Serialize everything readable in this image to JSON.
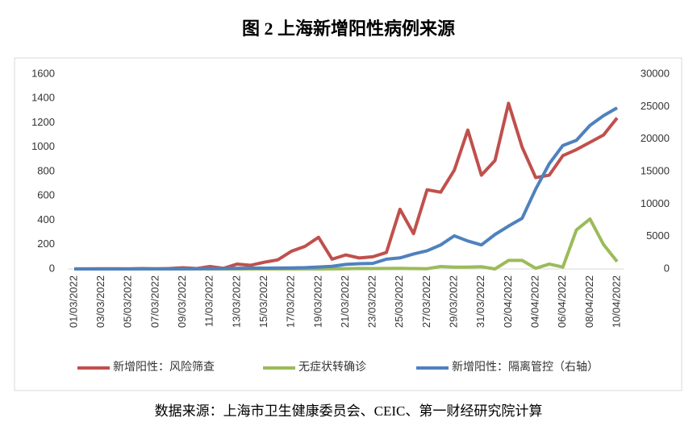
{
  "chart_data": {
    "type": "line",
    "title": "图 2  上海新增阳性病例来源",
    "source": "数据来源：上海市卫生健康委员会、CEIC、第一财经研究院计算",
    "categories": [
      "01/03/2022",
      null,
      "03/03/2022",
      null,
      "05/03/2022",
      null,
      "07/03/2022",
      null,
      "09/03/2022",
      null,
      "11/03/2022",
      null,
      "13/03/2022",
      null,
      "15/03/2022",
      null,
      "17/03/2022",
      null,
      "19/03/2022",
      null,
      "21/03/2022",
      null,
      "23/03/2022",
      null,
      "25/03/2022",
      null,
      "27/03/2022",
      null,
      "29/03/2022",
      null,
      "31/03/2022",
      null,
      "02/04/2022",
      null,
      "04/04/2022",
      null,
      "06/04/2022",
      null,
      "08/04/2022",
      null,
      "10/04/2022"
    ],
    "series": [
      {
        "name": "新增阳性：风险筛查",
        "color": "#c0504d",
        "values": [
          1,
          1,
          2,
          2,
          1,
          3,
          1,
          3,
          10,
          3,
          20,
          5,
          40,
          30,
          55,
          75,
          145,
          185,
          260,
          80,
          115,
          90,
          100,
          135,
          490,
          290,
          650,
          630,
          810,
          1140,
          770,
          890,
          1360,
          1000,
          750,
          770,
          930,
          980,
          1040,
          1100,
          1240
        ]
      },
      {
        "name": "无症状转确诊",
        "color": "#9bbb59",
        "values": [
          0,
          0,
          0,
          0,
          0,
          0,
          0,
          0,
          0,
          0,
          0,
          0,
          0,
          0,
          0,
          0,
          0,
          0,
          0,
          1,
          2,
          4,
          3,
          4,
          5,
          3,
          2,
          20,
          15,
          15,
          18,
          0,
          70,
          70,
          5,
          40,
          15,
          320,
          410,
          200,
          60
        ]
      },
      {
        "name": "新增阳性：隔离管控（右轴）",
        "color": "#4f81bd",
        "axis": "y2",
        "values": [
          2,
          3,
          3,
          5,
          5,
          8,
          10,
          8,
          20,
          25,
          50,
          60,
          100,
          120,
          130,
          140,
          150,
          200,
          300,
          400,
          700,
          800,
          850,
          1500,
          1700,
          2300,
          2800,
          3700,
          5100,
          4300,
          3700,
          5300,
          6600,
          7800,
          12300,
          16200,
          19000,
          19800,
          22100,
          23600,
          24800
        ]
      }
    ],
    "ylim": [
      0,
      1600
    ],
    "yticks": [
      0,
      200,
      400,
      600,
      800,
      1000,
      1200,
      1400,
      1600
    ],
    "y2lim": [
      0,
      30000
    ],
    "y2ticks": [
      0,
      5000,
      10000,
      15000,
      20000,
      25000,
      30000
    ],
    "grid": false,
    "legend": "bottom"
  }
}
